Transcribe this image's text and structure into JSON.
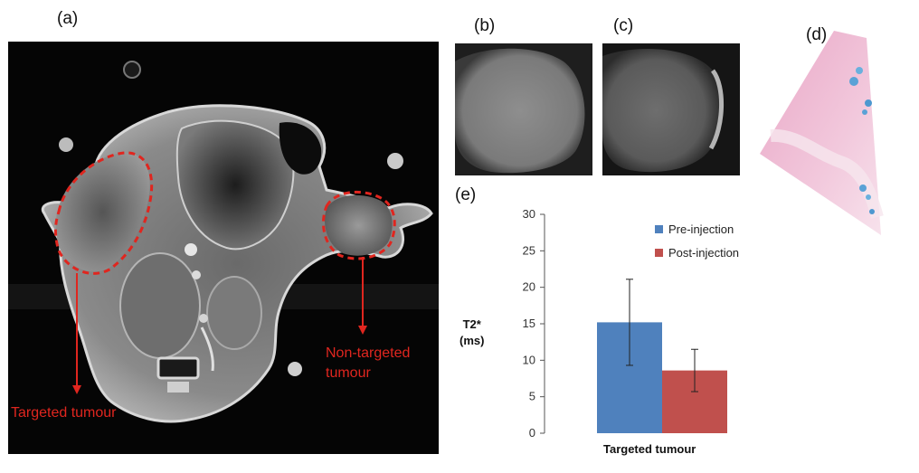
{
  "panels": {
    "a": "(a)",
    "b": "(b)",
    "c": "(c)",
    "d": "(d)",
    "e": "(e)"
  },
  "annotations": {
    "targeted": "Targeted tumour",
    "non_targeted_line1": "Non-targeted",
    "non_targeted_line2": "tumour",
    "color": "#e0261f"
  },
  "chart_data": {
    "type": "bar",
    "categories": [
      "Targeted tumour"
    ],
    "ylabel_line1": "T2*",
    "ylabel_line2": "(ms)",
    "ylim": [
      0,
      30
    ],
    "yticks": [
      0,
      5,
      10,
      15,
      20,
      25,
      30
    ],
    "grid": false,
    "legend_position": "top-right",
    "series": [
      {
        "name": "Pre-injection",
        "values": [
          15.2
        ],
        "error": [
          5.9
        ],
        "color": "#4f81bd"
      },
      {
        "name": "Post-injection",
        "values": [
          8.6
        ],
        "error": [
          2.9
        ],
        "color": "#c0504d"
      }
    ]
  }
}
